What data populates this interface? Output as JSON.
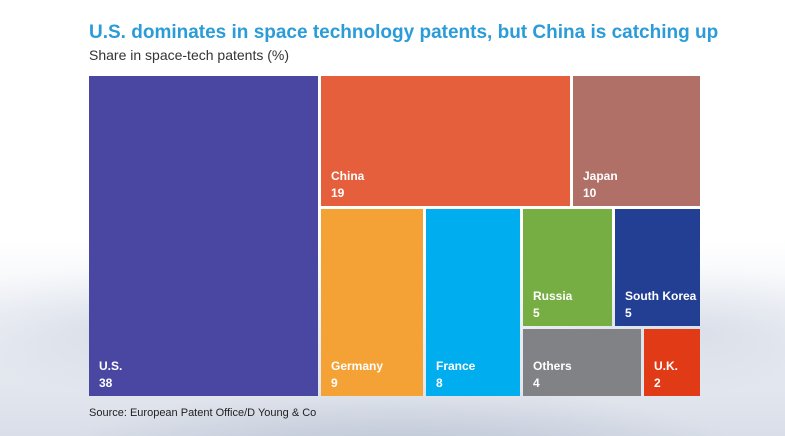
{
  "header": {
    "title": "U.S. dominates in space technology patents, but China is catching up",
    "subtitle": "Share in space-tech patents (%)"
  },
  "source": "Source: European Patent Office/D Young & Co",
  "chart_data": {
    "type": "treemap",
    "title": "U.S. dominates in space technology patents, but China is catching up",
    "subtitle": "Share in space-tech patents (%)",
    "items": [
      {
        "name": "U.S.",
        "value": 38,
        "color": "#4a47a3"
      },
      {
        "name": "China",
        "value": 19,
        "color": "#e55f3d"
      },
      {
        "name": "Japan",
        "value": 10,
        "color": "#b07068"
      },
      {
        "name": "Germany",
        "value": 9,
        "color": "#f4a236"
      },
      {
        "name": "France",
        "value": 8,
        "color": "#00aeef"
      },
      {
        "name": "Russia",
        "value": 5,
        "color": "#76ae43"
      },
      {
        "name": "South Korea",
        "value": 5,
        "color": "#233f94"
      },
      {
        "name": "Others",
        "value": 4,
        "color": "#818285"
      },
      {
        "name": "U.K.",
        "value": 2,
        "color": "#e03a16"
      }
    ]
  }
}
